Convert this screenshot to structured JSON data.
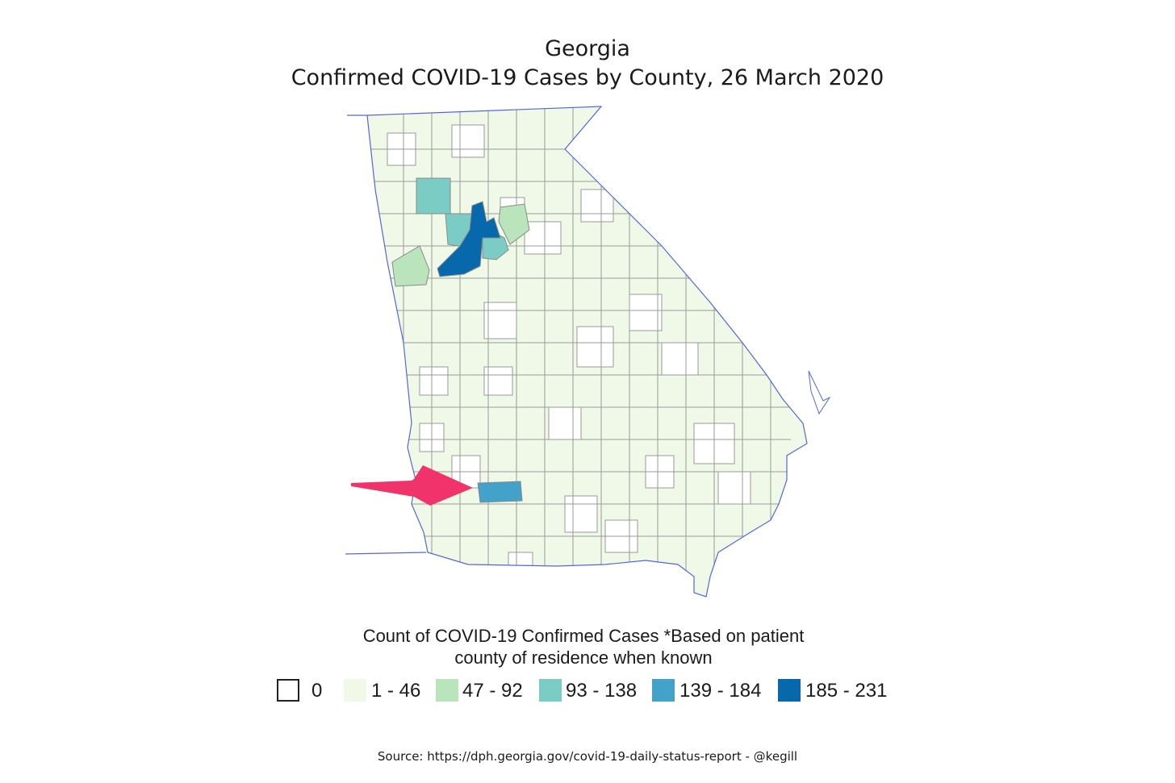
{
  "title": "Georgia",
  "subtitle": "Confirmed COVID-19 Cases by County, 26 March 2020",
  "legend": {
    "title_line1": "Count of COVID-19 Confirmed Cases *Based on patient",
    "title_line2": "county of residence when known",
    "bins": [
      {
        "label": "0",
        "color": "#ffffff"
      },
      {
        "label": "1 - 46",
        "color": "#f0f9e8"
      },
      {
        "label": "47 - 92",
        "color": "#bae4bc"
      },
      {
        "label": "93 - 138",
        "color": "#7bccc4"
      },
      {
        "label": "139 - 184",
        "color": "#43a2ca"
      },
      {
        "label": "185 - 231",
        "color": "#0868ac"
      }
    ]
  },
  "colors": {
    "state_border": "#5566dd",
    "county_border": "#9a9a9a",
    "arrow": "#f0336b"
  },
  "annotation": {
    "type": "arrow",
    "points_to": "highlighted south-west county (139 - 184)"
  },
  "source": "Source: https://dph.georgia.gov/covid-19-daily-status-report - @kegill"
}
